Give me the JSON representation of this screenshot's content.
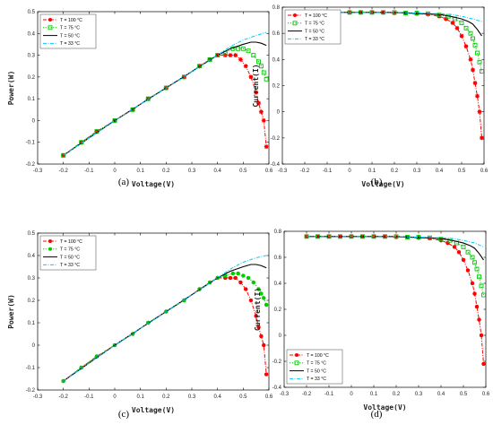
{
  "chart_data": [
    {
      "type": "line",
      "caption": "(a)",
      "xlabel": "Voltage(V)",
      "ylabel": "Power(W)",
      "xlim": [
        -0.3,
        0.6
      ],
      "ylim": [
        -0.2,
        0.5
      ],
      "xticks": [
        "-0.3",
        "-0.2",
        "-0.1",
        "0",
        "0.1",
        "0.2",
        "0.3",
        "0.4",
        "0.5",
        "0.6"
      ],
      "yticks": [
        "-0.2",
        "-0.1",
        "0",
        "0.1",
        "0.2",
        "0.3",
        "0.4",
        "0.5"
      ],
      "legend_position": "top-left",
      "series": [
        {
          "name": "T = 100 °C",
          "color": "#ff0000",
          "style": "dashdot",
          "marker": "star",
          "x": [
            -0.2,
            -0.13,
            -0.07,
            0,
            0.07,
            0.13,
            0.2,
            0.27,
            0.33,
            0.37,
            0.4,
            0.43,
            0.45,
            0.47,
            0.49,
            0.51,
            0.53,
            0.55,
            0.56,
            0.57,
            0.58,
            0.59
          ],
          "y": [
            -0.16,
            -0.1,
            -0.05,
            0,
            0.05,
            0.1,
            0.15,
            0.2,
            0.25,
            0.28,
            0.3,
            0.3,
            0.3,
            0.3,
            0.28,
            0.25,
            0.2,
            0.13,
            0.08,
            0.04,
            0,
            -0.12
          ]
        },
        {
          "name": "T = 75 °C",
          "color": "#00cc00",
          "style": "dotted",
          "marker": "square",
          "x": [
            -0.2,
            -0.13,
            -0.07,
            0,
            0.07,
            0.13,
            0.2,
            0.27,
            0.33,
            0.37,
            0.4,
            0.43,
            0.46,
            0.48,
            0.5,
            0.52,
            0.54,
            0.56,
            0.57,
            0.58,
            0.59
          ],
          "y": [
            -0.16,
            -0.1,
            -0.05,
            0,
            0.05,
            0.1,
            0.15,
            0.2,
            0.25,
            0.28,
            0.3,
            0.31,
            0.33,
            0.33,
            0.33,
            0.32,
            0.3,
            0.27,
            0.25,
            0.22,
            0.19
          ]
        },
        {
          "name": "T = 50 °C",
          "color": "#000000",
          "style": "solid",
          "marker": "none",
          "x": [
            -0.2,
            0,
            0.2,
            0.4,
            0.45,
            0.5,
            0.53,
            0.55,
            0.57,
            0.59
          ],
          "y": [
            -0.16,
            0,
            0.15,
            0.3,
            0.33,
            0.35,
            0.36,
            0.36,
            0.355,
            0.345
          ]
        },
        {
          "name": "T = 33 °C",
          "color": "#00ccff",
          "style": "dashdot",
          "marker": "none",
          "x": [
            -0.2,
            0,
            0.2,
            0.4,
            0.45,
            0.5,
            0.55,
            0.59
          ],
          "y": [
            -0.16,
            0,
            0.15,
            0.3,
            0.34,
            0.37,
            0.39,
            0.405
          ]
        }
      ]
    },
    {
      "type": "line",
      "caption": "(b)",
      "xlabel": "Voltage(V)",
      "ylabel": "Current(I)",
      "xlim": [
        -0.3,
        0.6
      ],
      "ylim": [
        -0.4,
        0.8
      ],
      "xticks": [
        "-0.3",
        "-0.2",
        "-0.1",
        "0",
        "0.1",
        "0.2",
        "0.3",
        "0.4",
        "0.5",
        "0.6"
      ],
      "yticks": [
        "-0.4",
        "-0.2",
        "0",
        "0.2",
        "0.4",
        "0.6",
        "0.8"
      ],
      "legend_position": "top-left",
      "series": [
        {
          "name": "T = 100 °C",
          "color": "#ff0000",
          "style": "dashdot",
          "marker": "star",
          "x": [
            -0.2,
            -0.15,
            -0.1,
            -0.05,
            0,
            0.05,
            0.1,
            0.15,
            0.2,
            0.25,
            0.3,
            0.35,
            0.4,
            0.43,
            0.46,
            0.48,
            0.5,
            0.52,
            0.54,
            0.55,
            0.56,
            0.57,
            0.58,
            0.59
          ],
          "y": [
            0.76,
            0.76,
            0.76,
            0.76,
            0.76,
            0.76,
            0.76,
            0.76,
            0.755,
            0.755,
            0.75,
            0.745,
            0.73,
            0.71,
            0.68,
            0.64,
            0.58,
            0.5,
            0.4,
            0.32,
            0.22,
            0.12,
            0.0,
            -0.2
          ]
        },
        {
          "name": "T = 75 °C",
          "color": "#00cc00",
          "style": "dotted",
          "marker": "square",
          "x": [
            -0.2,
            -0.15,
            -0.1,
            -0.05,
            0,
            0.05,
            0.1,
            0.15,
            0.2,
            0.25,
            0.3,
            0.35,
            0.4,
            0.44,
            0.47,
            0.5,
            0.52,
            0.54,
            0.55,
            0.56,
            0.57,
            0.58,
            0.59
          ],
          "y": [
            0.76,
            0.76,
            0.76,
            0.76,
            0.76,
            0.76,
            0.76,
            0.76,
            0.76,
            0.755,
            0.755,
            0.75,
            0.74,
            0.73,
            0.71,
            0.68,
            0.64,
            0.6,
            0.56,
            0.51,
            0.45,
            0.38,
            0.31
          ]
        },
        {
          "name": "T = 50 °C",
          "color": "#000000",
          "style": "solid",
          "marker": "none",
          "x": [
            -0.2,
            0,
            0.2,
            0.4,
            0.45,
            0.5,
            0.53,
            0.55,
            0.57,
            0.59
          ],
          "y": [
            0.76,
            0.76,
            0.76,
            0.745,
            0.73,
            0.71,
            0.69,
            0.67,
            0.63,
            0.58
          ]
        },
        {
          "name": "T = 33 °C",
          "color": "#00ccff",
          "style": "dashdot",
          "marker": "none",
          "x": [
            -0.2,
            0,
            0.2,
            0.4,
            0.45,
            0.5,
            0.55,
            0.59
          ],
          "y": [
            0.76,
            0.76,
            0.76,
            0.75,
            0.745,
            0.73,
            0.71,
            0.69
          ]
        }
      ]
    },
    {
      "type": "line",
      "caption": "(c)",
      "xlabel": "Voltage(V)",
      "ylabel": "Power(W)",
      "xlim": [
        -0.3,
        0.6
      ],
      "ylim": [
        -0.2,
        0.5
      ],
      "xticks": [
        "-0.3",
        "-0.2",
        "-0.1",
        "0",
        "0.1",
        "0.2",
        "0.3",
        "0.4",
        "0.5",
        "0.6"
      ],
      "yticks": [
        "-0.2",
        "-0.1",
        "0",
        "0.1",
        "0.2",
        "0.3",
        "0.4",
        "0.5"
      ],
      "legend_position": "top-left",
      "series": [
        {
          "name": "T = 100 °C",
          "color": "#ff0000",
          "style": "dashdot",
          "marker": "circle",
          "x": [
            -0.2,
            -0.13,
            -0.07,
            0,
            0.07,
            0.13,
            0.2,
            0.27,
            0.33,
            0.37,
            0.4,
            0.43,
            0.45,
            0.47,
            0.49,
            0.51,
            0.53,
            0.55,
            0.56,
            0.57,
            0.58,
            0.59
          ],
          "y": [
            -0.16,
            -0.1,
            -0.05,
            0,
            0.05,
            0.1,
            0.15,
            0.2,
            0.25,
            0.28,
            0.3,
            0.3,
            0.3,
            0.3,
            0.28,
            0.25,
            0.2,
            0.13,
            0.08,
            0.04,
            0,
            -0.13
          ]
        },
        {
          "name": "T = 75 °C",
          "color": "#00cc00",
          "style": "dotted",
          "marker": "circle",
          "x": [
            -0.2,
            -0.13,
            -0.07,
            0,
            0.07,
            0.13,
            0.2,
            0.27,
            0.33,
            0.37,
            0.4,
            0.43,
            0.46,
            0.48,
            0.5,
            0.52,
            0.54,
            0.56,
            0.57,
            0.58,
            0.59
          ],
          "y": [
            -0.16,
            -0.1,
            -0.05,
            0,
            0.05,
            0.1,
            0.15,
            0.2,
            0.25,
            0.28,
            0.3,
            0.31,
            0.32,
            0.32,
            0.31,
            0.3,
            0.28,
            0.25,
            0.23,
            0.21,
            0.18
          ]
        },
        {
          "name": "T = 50 °C",
          "color": "#000000",
          "style": "solid",
          "marker": "none",
          "x": [
            -0.2,
            0,
            0.2,
            0.4,
            0.45,
            0.5,
            0.53,
            0.55,
            0.57,
            0.59
          ],
          "y": [
            -0.16,
            0,
            0.15,
            0.3,
            0.33,
            0.35,
            0.36,
            0.36,
            0.355,
            0.345
          ]
        },
        {
          "name": "T = 33 °C",
          "color": "#00ccff",
          "style": "dashdot",
          "marker": "none",
          "x": [
            -0.2,
            0,
            0.2,
            0.4,
            0.45,
            0.5,
            0.55,
            0.59
          ],
          "y": [
            -0.16,
            0,
            0.15,
            0.3,
            0.34,
            0.37,
            0.39,
            0.4
          ]
        }
      ]
    },
    {
      "type": "line",
      "caption": "(d)",
      "xlabel": "Voltage(V)",
      "ylabel": "Current(I)",
      "xlim": [
        -0.3,
        0.6
      ],
      "ylim": [
        -0.4,
        0.8
      ],
      "xticks": [
        "-0.3",
        "-0.2",
        "-0.1",
        "0",
        "0.1",
        "0.2",
        "0.3",
        "0.4",
        "0.5",
        "0.6"
      ],
      "yticks": [
        "-0.4",
        "-0.2",
        "0",
        "0.2",
        "0.4",
        "0.6",
        "0.8"
      ],
      "legend_position": "bottom-left",
      "series": [
        {
          "name": "T = 100 °C",
          "color": "#ff0000",
          "style": "dashdot",
          "marker": "circle",
          "x": [
            -0.2,
            -0.15,
            -0.1,
            -0.05,
            0,
            0.05,
            0.1,
            0.15,
            0.2,
            0.25,
            0.3,
            0.35,
            0.4,
            0.43,
            0.46,
            0.48,
            0.5,
            0.52,
            0.54,
            0.55,
            0.56,
            0.57,
            0.58,
            0.59
          ],
          "y": [
            0.76,
            0.76,
            0.76,
            0.76,
            0.76,
            0.76,
            0.76,
            0.76,
            0.755,
            0.755,
            0.75,
            0.745,
            0.73,
            0.71,
            0.68,
            0.64,
            0.58,
            0.5,
            0.4,
            0.32,
            0.22,
            0.12,
            0.0,
            -0.22
          ]
        },
        {
          "name": "T = 75 °C",
          "color": "#00cc00",
          "style": "dotted",
          "marker": "square",
          "x": [
            -0.2,
            -0.15,
            -0.1,
            -0.05,
            0,
            0.05,
            0.1,
            0.15,
            0.2,
            0.25,
            0.3,
            0.35,
            0.4,
            0.44,
            0.47,
            0.5,
            0.52,
            0.54,
            0.55,
            0.56,
            0.57,
            0.58,
            0.59
          ],
          "y": [
            0.76,
            0.76,
            0.76,
            0.76,
            0.76,
            0.76,
            0.76,
            0.76,
            0.76,
            0.755,
            0.755,
            0.75,
            0.74,
            0.73,
            0.71,
            0.68,
            0.64,
            0.6,
            0.56,
            0.51,
            0.45,
            0.38,
            0.31
          ]
        },
        {
          "name": "T = 50 °C",
          "color": "#000000",
          "style": "solid",
          "marker": "none",
          "x": [
            -0.2,
            0,
            0.2,
            0.4,
            0.45,
            0.5,
            0.53,
            0.55,
            0.57,
            0.59
          ],
          "y": [
            0.76,
            0.76,
            0.76,
            0.745,
            0.73,
            0.71,
            0.69,
            0.67,
            0.63,
            0.58
          ]
        },
        {
          "name": "T = 33 °C",
          "color": "#00ccff",
          "style": "dashdot",
          "marker": "none",
          "x": [
            -0.2,
            0,
            0.2,
            0.4,
            0.45,
            0.5,
            0.55,
            0.59
          ],
          "y": [
            0.76,
            0.76,
            0.76,
            0.75,
            0.745,
            0.73,
            0.71,
            0.68
          ]
        }
      ]
    }
  ]
}
